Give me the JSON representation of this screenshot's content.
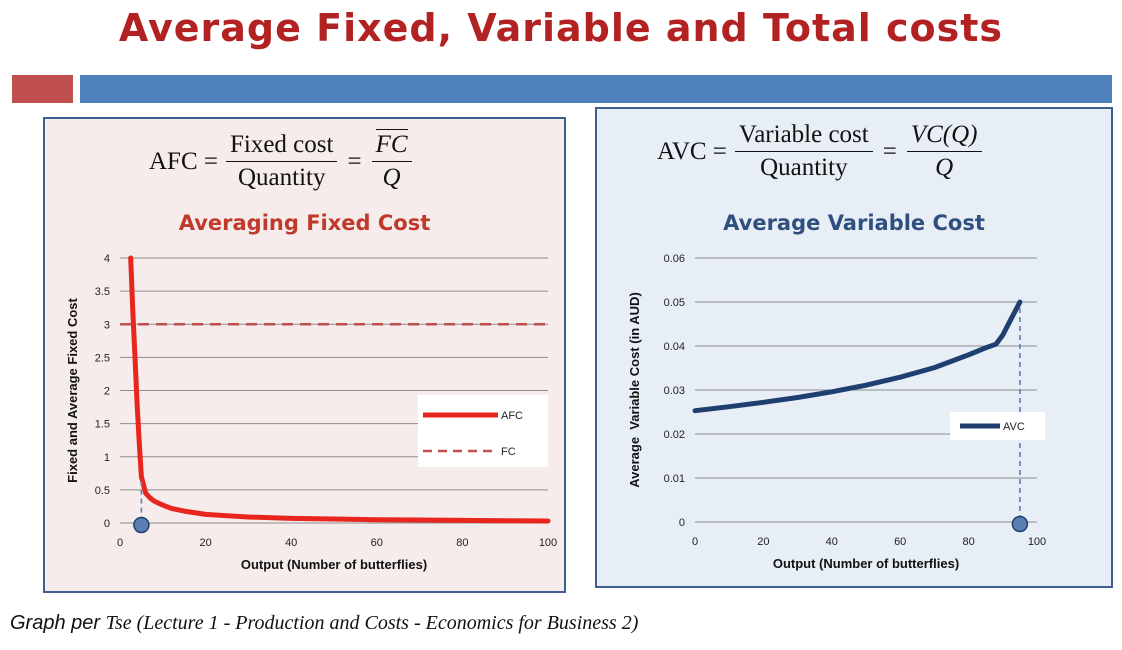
{
  "slide": {
    "title": "Average Fixed, Variable and Total costs",
    "caption_lead": "Graph per",
    "caption_source": "Tse (Lecture 1 - Production and Costs - Economics for Business 2)"
  },
  "colors": {
    "title": "#b22222",
    "accent_red": "#c0504d",
    "accent_blue": "#4f81bd",
    "afc_line": "#e8261e",
    "fc_line": "#c0504d",
    "afc_subtitle": "#c0392b",
    "avc_subtitle": "#2f4f7f",
    "avc_line": "#1f3f70",
    "marker": "#5b7fb3"
  },
  "afc_panel": {
    "formula": {
      "lhs": "AFC =",
      "num": "Fixed cost",
      "den": "Quantity",
      "eq": "=",
      "num2": "FC",
      "den2": "Q"
    },
    "subtitle": "Averaging Fixed Cost"
  },
  "avc_panel": {
    "formula": {
      "lhs": "AVC =",
      "num": "Variable cost",
      "den": "Quantity",
      "eq": "=",
      "num2": "VC(Q)",
      "den2": "Q"
    },
    "subtitle": "Average Variable Cost"
  },
  "chart_data": [
    {
      "type": "line",
      "title": "Averaging Fixed Cost",
      "xlabel": "Output (Number of butterflies)",
      "ylabel": "Fixed and Average Fixed Cost",
      "xlim": [
        0,
        100
      ],
      "ylim": [
        0,
        4
      ],
      "xticks": [
        0,
        20,
        40,
        60,
        80,
        100
      ],
      "yticks": [
        0,
        0.5,
        1,
        1.5,
        2,
        2.5,
        3,
        3.5,
        4
      ],
      "grid": true,
      "legend_position": "right",
      "series": [
        {
          "name": "AFC",
          "style": "solid",
          "x": [
            2.5,
            3,
            3.5,
            4,
            4.5,
            5,
            6,
            7,
            8,
            10,
            12,
            15,
            20,
            25,
            30,
            40,
            50,
            60,
            70,
            80,
            90,
            100
          ],
          "values": [
            4.0,
            3.2,
            2.5,
            1.8,
            1.2,
            0.7,
            0.45,
            0.38,
            0.33,
            0.27,
            0.22,
            0.18,
            0.13,
            0.11,
            0.09,
            0.07,
            0.06,
            0.05,
            0.045,
            0.04,
            0.035,
            0.03
          ]
        },
        {
          "name": "FC",
          "style": "dashed",
          "x": [
            0,
            100
          ],
          "values": [
            3,
            3
          ]
        }
      ],
      "marker": {
        "x": 5
      }
    },
    {
      "type": "line",
      "title": "Average Variable Cost",
      "xlabel": "Output (Number of butterflies)",
      "ylabel": "Average  Variable Cost (in AUD)",
      "xlim": [
        0,
        100
      ],
      "ylim": [
        0,
        0.06
      ],
      "xticks": [
        0,
        20,
        40,
        60,
        80,
        100
      ],
      "yticks": [
        0,
        0.01,
        0.02,
        0.03,
        0.04,
        0.05,
        0.06
      ],
      "grid": true,
      "legend_position": "right",
      "series": [
        {
          "name": "AVC",
          "style": "solid",
          "x": [
            0,
            10,
            20,
            30,
            40,
            50,
            60,
            70,
            80,
            85,
            88,
            90,
            92,
            94,
            95
          ],
          "values": [
            0.0253,
            0.0262,
            0.0272,
            0.0283,
            0.0296,
            0.0311,
            0.0329,
            0.0351,
            0.038,
            0.0396,
            0.0404,
            0.0425,
            0.0455,
            0.0485,
            0.05
          ]
        }
      ],
      "marker": {
        "x": 95
      }
    }
  ]
}
